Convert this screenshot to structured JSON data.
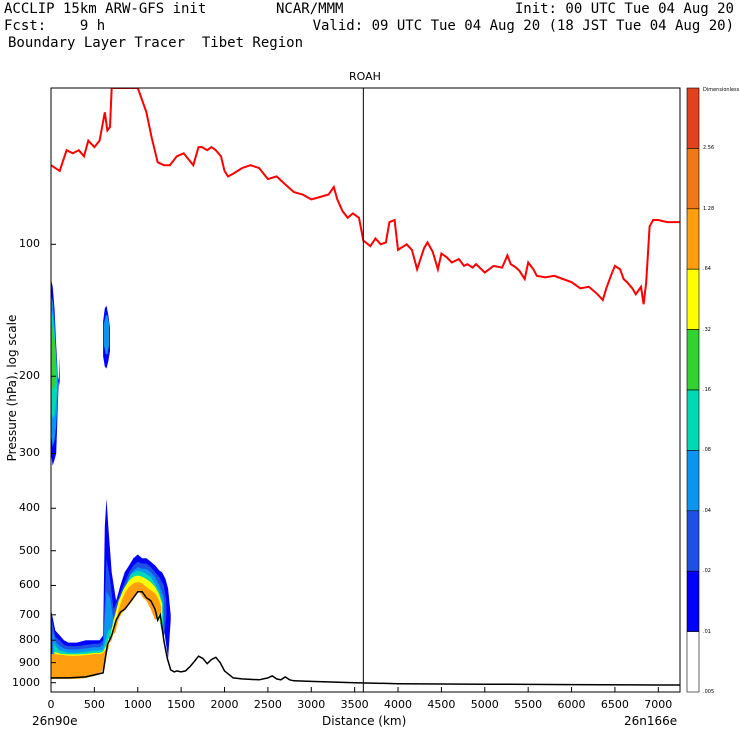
{
  "header": {
    "line1_left": "ACCLIP 15km ARW-GFS init",
    "line1_mid": "NCAR/MMM",
    "line1_right": "Init: 00 UTC Tue 04 Aug 20",
    "line2_left": "Fcst:    9 h",
    "line2_right": "Valid: 09 UTC Tue 04 Aug 20 (18 JST Tue 04 Aug 20)",
    "line3_left": "Boundary Layer Tracer  Tibet Region"
  },
  "chart_data": {
    "type": "cross-section",
    "title": "ROAH",
    "xlabel": "Distance (km)",
    "ylabel": "Pressure (hPa), log scale",
    "x_left_label": "26n90e",
    "x_right_label": "26n166e",
    "xlim": [
      0,
      7250
    ],
    "ylim": [
      1050,
      44
    ],
    "x_ticks": [
      0,
      500,
      1000,
      1500,
      2000,
      2500,
      3000,
      3500,
      4000,
      4500,
      5000,
      5500,
      6000,
      6500,
      7000
    ],
    "y_ticks": [
      100,
      200,
      300,
      400,
      500,
      600,
      700,
      800,
      900,
      1000
    ],
    "marker_x": 3600,
    "colorbar": {
      "unit": "Dimensionless",
      "colors": [
        "#e2411f",
        "#f07818",
        "#ff9f10",
        "#ffff00",
        "#32d232",
        "#00d9b4",
        "#0a96f0",
        "#1e50e6",
        "#0000ff",
        "#ffffff"
      ],
      "labels": [
        "2.56",
        "1.28",
        ".64",
        ".32",
        ".16",
        ".08",
        ".04",
        ".02",
        ".01",
        ".005"
      ]
    },
    "series": [
      {
        "name": "tropopause",
        "color": "#ff0000",
        "x": [
          0,
          100,
          180,
          250,
          320,
          380,
          430,
          500,
          560,
          620,
          650,
          680,
          700,
          760,
          820,
          1000,
          1100,
          1160,
          1230,
          1300,
          1370,
          1450,
          1530,
          1640,
          1700,
          1740,
          1800,
          1850,
          1900,
          1960,
          2000,
          2040,
          2100,
          2200,
          2300,
          2400,
          2500,
          2600,
          2700,
          2800,
          2900,
          3000,
          3100,
          3200,
          3260,
          3300,
          3360,
          3420,
          3480,
          3550,
          3600,
          3680,
          3740,
          3800,
          3860,
          3900,
          3960,
          4000,
          4100,
          4160,
          4220,
          4300,
          4340,
          4400,
          4460,
          4500,
          4560,
          4620,
          4700,
          4760,
          4800,
          4860,
          4900,
          5000,
          5100,
          5200,
          5260,
          5300,
          5360,
          5400,
          5460,
          5500,
          5560,
          5600,
          5700,
          5800,
          5900,
          6000,
          6100,
          6200,
          6300,
          6360,
          6400,
          6460,
          6500,
          6560,
          6600,
          6640,
          6700,
          6740,
          6800,
          6830,
          6860,
          6900,
          6940,
          7000,
          7100,
          7250
        ],
        "y": [
          66,
          68,
          61,
          62,
          61,
          63,
          58,
          60,
          58,
          50,
          55,
          54,
          44,
          44,
          44,
          44,
          50,
          57,
          65,
          66,
          66,
          63,
          62,
          66,
          60,
          60,
          61,
          60,
          61,
          63,
          68,
          70,
          69,
          67,
          66,
          67,
          71,
          70,
          73,
          76,
          77,
          79,
          78,
          77,
          74,
          79,
          84,
          87,
          85,
          87,
          98,
          101,
          97,
          100,
          99,
          89,
          88,
          103,
          100,
          103,
          114,
          102,
          99,
          104,
          114,
          105,
          107,
          110,
          108,
          112,
          111,
          113,
          111,
          116,
          112,
          113,
          106,
          111,
          113,
          115,
          120,
          110,
          114,
          118,
          119,
          118,
          120,
          122,
          126,
          125,
          130,
          134,
          126,
          117,
          112,
          114,
          120,
          122,
          126,
          130,
          125,
          137,
          122,
          91,
          88,
          88,
          89,
          89
        ]
      },
      {
        "name": "terrain",
        "color": "#000000",
        "x": [
          0,
          200,
          400,
          500,
          600,
          650,
          700,
          750,
          800,
          850,
          900,
          950,
          1000,
          1050,
          1100,
          1150,
          1200,
          1230,
          1260,
          1300,
          1340,
          1380,
          1420,
          1450,
          1500,
          1550,
          1600,
          1650,
          1700,
          1750,
          1800,
          1850,
          1900,
          1950,
          2000,
          2100,
          2200,
          2300,
          2400,
          2500,
          2550,
          2600,
          2650,
          2700,
          2750,
          2800,
          3000,
          3500,
          4000,
          5000,
          6000,
          7000,
          7250
        ],
        "y": [
          975,
          975,
          970,
          960,
          950,
          820,
          780,
          720,
          690,
          680,
          660,
          640,
          620,
          620,
          640,
          650,
          680,
          720,
          700,
          800,
          880,
          935,
          945,
          940,
          945,
          940,
          920,
          895,
          870,
          880,
          905,
          885,
          875,
          900,
          940,
          975,
          980,
          983,
          985,
          975,
          965,
          980,
          985,
          970,
          985,
          990,
          993,
          1000,
          1005,
          1008,
          1010,
          1012,
          1012
        ]
      }
    ],
    "contour_bands": [
      {
        "color": "#0000ff",
        "x": [
          0,
          50,
          100,
          150,
          200,
          300,
          400,
          500,
          560,
          600,
          620,
          640,
          660,
          700,
          750,
          800,
          850,
          900,
          950,
          1000,
          1050,
          1100,
          1150,
          1200,
          1250,
          1280,
          1320,
          1350,
          1380
        ],
        "top": [
          680,
          760,
          780,
          800,
          810,
          810,
          800,
          800,
          800,
          780,
          440,
          380,
          440,
          560,
          650,
          600,
          560,
          540,
          520,
          510,
          520,
          520,
          530,
          540,
          555,
          560,
          580,
          610,
          700
        ],
        "bottom": [
          980,
          980,
          980,
          980,
          980,
          980,
          975,
          965,
          955,
          930,
          820,
          800,
          790,
          780,
          720,
          690,
          680,
          660,
          640,
          620,
          620,
          640,
          650,
          680,
          720,
          700,
          800,
          880,
          720
        ]
      },
      {
        "color": "#1e50e6",
        "x": [
          10,
          50,
          100,
          150,
          200,
          300,
          400,
          500,
          560,
          600,
          640,
          680,
          720,
          780,
          850,
          900,
          950,
          1000,
          1050,
          1100,
          1150,
          1200,
          1250,
          1300,
          1330
        ],
        "top": [
          720,
          785,
          800,
          820,
          825,
          825,
          820,
          815,
          815,
          800,
          520,
          580,
          680,
          640,
          590,
          560,
          540,
          530,
          535,
          535,
          545,
          560,
          575,
          600,
          650
        ],
        "bottom": [
          980,
          980,
          980,
          980,
          980,
          980,
          975,
          965,
          955,
          930,
          800,
          790,
          775,
          715,
          680,
          660,
          640,
          620,
          620,
          640,
          650,
          680,
          720,
          790,
          700
        ]
      },
      {
        "color": "#0a96f0",
        "x": [
          20,
          60,
          100,
          150,
          200,
          300,
          400,
          500,
          560,
          600,
          640,
          680,
          720,
          780,
          850,
          900,
          950,
          1000,
          1050,
          1100,
          1150,
          1200,
          1250,
          1300
        ],
        "top": [
          760,
          810,
          825,
          835,
          840,
          840,
          835,
          830,
          830,
          820,
          620,
          640,
          720,
          660,
          610,
          575,
          555,
          545,
          550,
          550,
          560,
          575,
          600,
          640
        ],
        "bottom": [
          980,
          980,
          980,
          980,
          980,
          980,
          975,
          965,
          955,
          930,
          800,
          790,
          775,
          715,
          680,
          660,
          640,
          620,
          620,
          640,
          650,
          680,
          720,
          790
        ]
      },
      {
        "color": "#00d9b4",
        "x": [
          30,
          60,
          100,
          150,
          200,
          300,
          400,
          500,
          560,
          600,
          660,
          700,
          760,
          820,
          880,
          920,
          960,
          1000,
          1060,
          1100,
          1150,
          1200,
          1250,
          1290
        ],
        "top": [
          810,
          830,
          845,
          850,
          855,
          855,
          850,
          845,
          845,
          840,
          760,
          750,
          680,
          620,
          590,
          565,
          560,
          555,
          560,
          565,
          575,
          595,
          620,
          660
        ],
        "bottom": [
          980,
          980,
          980,
          980,
          980,
          980,
          975,
          965,
          955,
          930,
          795,
          780,
          715,
          690,
          670,
          655,
          640,
          620,
          620,
          640,
          650,
          680,
          720,
          760
        ]
      },
      {
        "color": "#ffff00",
        "x": [
          40,
          80,
          120,
          200,
          300,
          400,
          500,
          560,
          600,
          680,
          720,
          780,
          840,
          900,
          940,
          980,
          1020,
          1060,
          1100,
          1150,
          1200,
          1240,
          1280
        ],
        "top": [
          850,
          855,
          860,
          862,
          862,
          860,
          855,
          855,
          850,
          790,
          720,
          650,
          610,
          585,
          575,
          570,
          570,
          575,
          580,
          590,
          605,
          625,
          660
        ],
        "bottom": [
          980,
          980,
          980,
          980,
          980,
          975,
          965,
          955,
          930,
          790,
          775,
          715,
          685,
          665,
          650,
          630,
          620,
          620,
          640,
          650,
          680,
          720,
          740
        ]
      },
      {
        "color": "#ff9f10",
        "x": [
          0,
          80,
          150,
          200,
          300,
          400,
          500,
          560,
          600,
          700,
          740,
          780,
          820,
          860,
          900,
          940,
          980,
          1020,
          1060,
          1100,
          1150,
          1200,
          1240,
          1270
        ],
        "top": [
          860,
          862,
          865,
          868,
          868,
          865,
          860,
          860,
          855,
          800,
          740,
          680,
          645,
          620,
          605,
          595,
          590,
          590,
          595,
          605,
          615,
          625,
          645,
          670
        ],
        "bottom": [
          980,
          980,
          980,
          980,
          980,
          975,
          965,
          955,
          930,
          780,
          770,
          715,
          690,
          675,
          660,
          640,
          625,
          620,
          640,
          650,
          680,
          720,
          700,
          690
        ]
      },
      {
        "color": "#0000ff",
        "x": [
          0,
          20,
          40,
          60,
          80,
          100
        ],
        "top": [
          120,
          125,
          140,
          170,
          200,
          210
        ],
        "bottom": [
          300,
          320,
          310,
          300,
          230,
          180
        ]
      },
      {
        "color": "#0a96f0",
        "x": [
          0,
          20,
          40,
          60,
          80
        ],
        "top": [
          130,
          135,
          150,
          180,
          200
        ],
        "bottom": [
          270,
          290,
          280,
          260,
          220
        ]
      },
      {
        "color": "#00d9b4",
        "x": [
          0,
          20,
          40,
          60,
          70
        ],
        "top": [
          140,
          145,
          160,
          185,
          200
        ],
        "bottom": [
          240,
          250,
          245,
          230,
          215
        ]
      },
      {
        "color": "#32d232",
        "x": [
          0,
          20,
          40,
          60
        ],
        "top": [
          150,
          155,
          165,
          180
        ],
        "bottom": [
          205,
          215,
          210,
          200
        ]
      },
      {
        "color": "#0000ff",
        "x": [
          600,
          620,
          640,
          660,
          680
        ],
        "top": [
          150,
          140,
          138,
          145,
          155
        ],
        "bottom": [
          180,
          190,
          192,
          185,
          175
        ]
      },
      {
        "color": "#0a96f0",
        "x": [
          610,
          630,
          650,
          670
        ],
        "top": [
          152,
          145,
          145,
          152
        ],
        "bottom": [
          170,
          178,
          178,
          170
        ]
      }
    ]
  }
}
